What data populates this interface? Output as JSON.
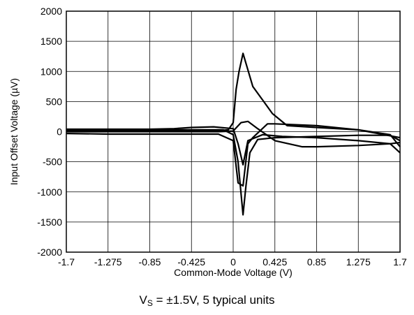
{
  "chart_data": {
    "type": "line",
    "xlabel": "Common-Mode Voltage (V)",
    "ylabel": "Input Offset Voltage (µV)",
    "xlim": [
      -1.7,
      1.7
    ],
    "ylim": [
      -2000,
      2000
    ],
    "xticks": [
      -1.7,
      -1.275,
      -0.85,
      -0.425,
      0,
      0.425,
      0.85,
      1.275,
      1.7
    ],
    "xtick_labels": [
      "-1.7",
      "-1.275",
      "-0.85",
      "-0.425",
      "0",
      "0.425",
      "0.85",
      "1.275",
      "1.7"
    ],
    "yticks": [
      -2000,
      -1500,
      -1000,
      -500,
      0,
      500,
      1000,
      1500,
      2000
    ],
    "ytick_labels": [
      "-2000",
      "-1500",
      "-1000",
      "-500",
      "0",
      "500",
      "1000",
      "1500",
      "2000"
    ],
    "grid": true,
    "line_color": "#000000",
    "series": [
      {
        "x": [
          -1.7,
          -1.3,
          -0.85,
          -0.425,
          -0.2,
          -0.05,
          0.0,
          0.03,
          0.06,
          0.1,
          0.2,
          0.4,
          0.55,
          0.85,
          1.275,
          1.6,
          1.7
        ],
        "y": [
          20,
          20,
          20,
          20,
          10,
          30,
          150,
          700,
          1000,
          1300,
          750,
          300,
          100,
          70,
          30,
          -50,
          -250
        ]
      },
      {
        "x": [
          -1.7,
          -1.275,
          -0.85,
          -0.425,
          -0.1,
          0.0,
          0.05,
          0.1,
          0.13,
          0.17,
          0.25,
          0.425,
          0.85,
          1.275,
          1.6,
          1.7
        ],
        "y": [
          30,
          30,
          30,
          30,
          30,
          -50,
          -500,
          -1380,
          -900,
          -350,
          -130,
          -100,
          -80,
          -60,
          -60,
          -150
        ]
      },
      {
        "x": [
          -1.7,
          -1.275,
          -0.85,
          -0.425,
          -0.15,
          0.0,
          0.05,
          0.1,
          0.15,
          0.2,
          0.35,
          0.425,
          0.85,
          1.275,
          1.7
        ],
        "y": [
          -30,
          -40,
          -40,
          -40,
          -40,
          -150,
          -850,
          -900,
          -200,
          -100,
          130,
          130,
          100,
          30,
          -100
        ]
      },
      {
        "x": [
          -1.7,
          -1.275,
          -0.85,
          -0.6,
          -0.425,
          -0.2,
          0.0,
          0.05,
          0.1,
          0.15,
          0.3,
          0.5,
          0.85,
          1.275,
          1.6,
          1.7
        ],
        "y": [
          40,
          40,
          40,
          50,
          70,
          80,
          50,
          -200,
          -550,
          -150,
          -50,
          -80,
          -100,
          -150,
          -200,
          -350
        ]
      },
      {
        "x": [
          -1.7,
          -1.275,
          -0.85,
          -0.425,
          -0.15,
          0.0,
          0.08,
          0.15,
          0.25,
          0.425,
          0.7,
          0.85,
          1.275,
          1.6,
          1.7
        ],
        "y": [
          0,
          0,
          0,
          0,
          0,
          10,
          150,
          170,
          50,
          -150,
          -250,
          -250,
          -230,
          -200,
          -180
        ]
      }
    ],
    "caption": {
      "v_symbol": "V",
      "v_subscript": "S",
      "text": " = ±1.5V, 5 typical units"
    }
  }
}
